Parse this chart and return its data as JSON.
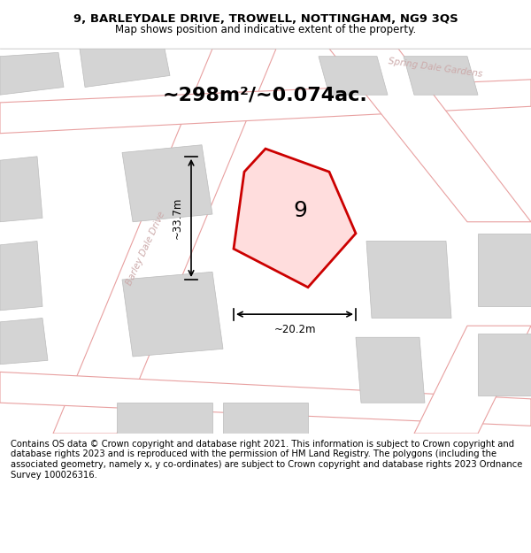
{
  "title_line1": "9, BARLEYDALE DRIVE, TROWELL, NOTTINGHAM, NG9 3QS",
  "title_line2": "Map shows position and indicative extent of the property.",
  "area_text": "~298m²/~0.074ac.",
  "label_number": "9",
  "dim_width": "~20.2m",
  "dim_height": "~33.7m",
  "road_label1": "Barley Dale Drive",
  "road_label2": "Spring Dale Gardens",
  "footer_text": "Contains OS data © Crown copyright and database right 2021. This information is subject to Crown copyright and database rights 2023 and is reproduced with the permission of HM Land Registry. The polygons (including the associated geometry, namely x, y co-ordinates) are subject to Crown copyright and database rights 2023 Ordnance Survey 100026316.",
  "bg_color": "#f0f0f0",
  "map_bg": "#f5f5f5",
  "road_color": "#ffffff",
  "building_color": "#d8d8d8",
  "plot_color": "#ffcccc",
  "plot_edge_color": "#cc0000",
  "road_line_color": "#e8a0a0",
  "title_bg": "#ffffff",
  "footer_bg": "#ffffff"
}
